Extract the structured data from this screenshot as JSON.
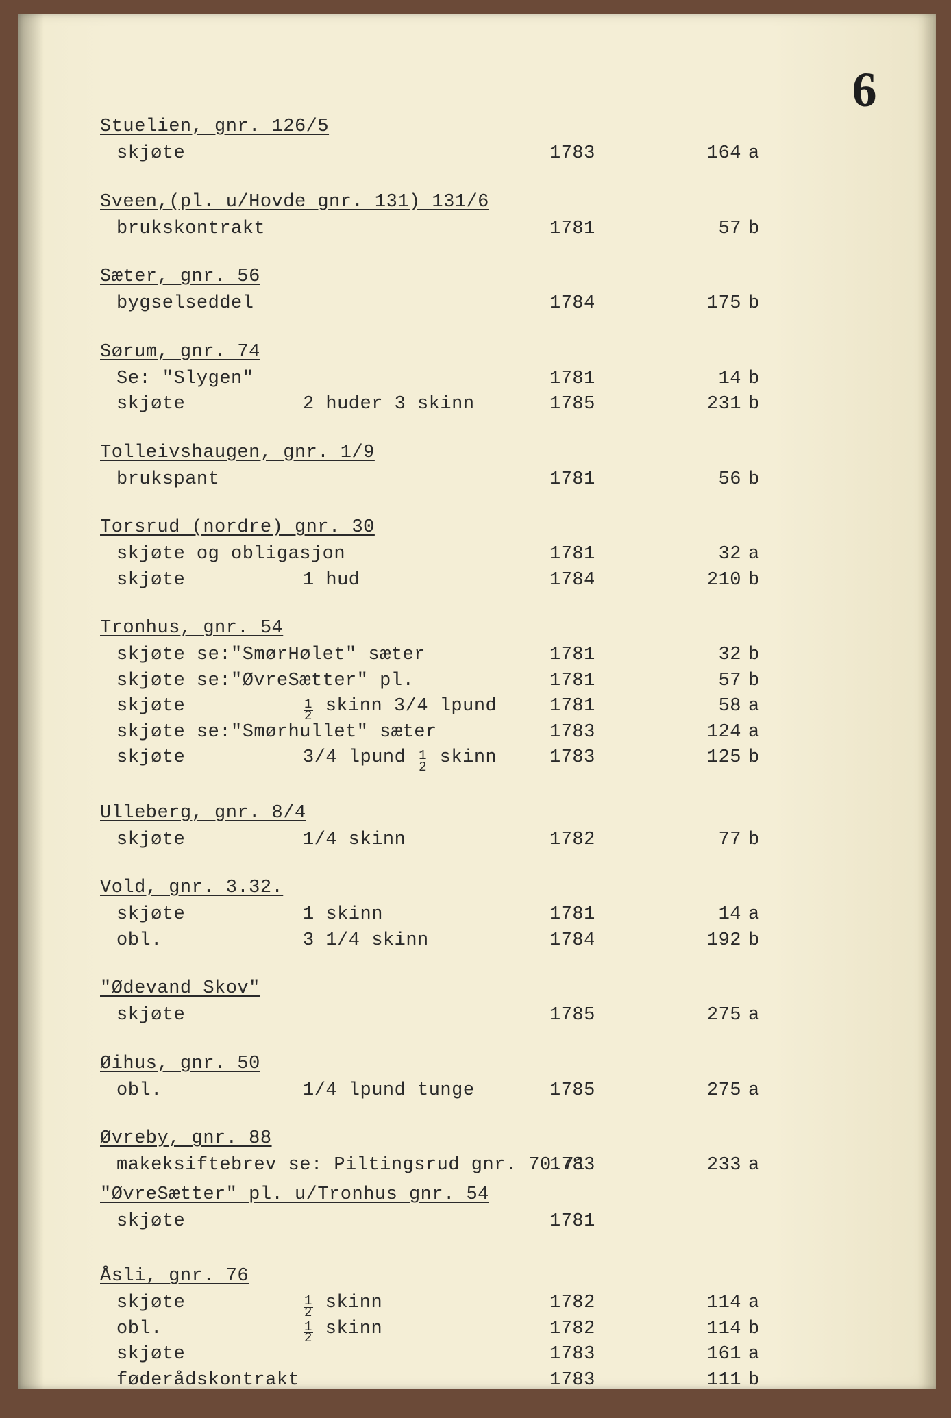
{
  "page_number": "6",
  "sections": [
    {
      "heading": "Stuelien, gnr. 126/5",
      "entries": [
        {
          "desc": "skjøte",
          "detail": "",
          "year": "1783",
          "folio": "164",
          "side": "a"
        }
      ]
    },
    {
      "heading": "Sveen,(pl. u/Hovde gnr. 131) 131/6",
      "entries": [
        {
          "desc": "brukskontrakt",
          "detail": "",
          "year": "1781",
          "folio": "57",
          "side": "b"
        }
      ]
    },
    {
      "heading": "Sæter, gnr. 56",
      "entries": [
        {
          "desc": "bygselseddel",
          "detail": "",
          "year": "1784",
          "folio": "175",
          "side": "b"
        }
      ]
    },
    {
      "heading": "Sørum, gnr. 74",
      "entries": [
        {
          "desc": "Se: \"Slygen\"",
          "detail": "",
          "year": "1781",
          "folio": "14",
          "side": "b"
        },
        {
          "desc": "skjøte",
          "detail": "2 huder 3 skinn",
          "year": "1785",
          "folio": "231",
          "side": "b"
        }
      ]
    },
    {
      "heading": "Tolleivshaugen, gnr. 1/9",
      "entries": [
        {
          "desc": "brukspant",
          "detail": "",
          "year": "1781",
          "folio": "56",
          "side": "b"
        }
      ]
    },
    {
      "heading": "Torsrud (nordre) gnr. 30",
      "entries": [
        {
          "desc": "skjøte og obligasjon",
          "detail": "",
          "year": "1781",
          "folio": "32",
          "side": "a"
        },
        {
          "desc": "skjøte",
          "detail": "1 hud",
          "year": "1784",
          "folio": "210",
          "side": "b"
        }
      ]
    },
    {
      "heading": "Tronhus, gnr. 54",
      "entries": [
        {
          "desc": "skjøte se:\"SmørHølet\" sæter",
          "detail": "",
          "year": "1781",
          "folio": "32",
          "side": "b",
          "wide": true
        },
        {
          "desc": "skjøte se:\"ØvreSætter\" pl.",
          "detail": "",
          "year": "1781",
          "folio": "57",
          "side": "b",
          "wide": true
        },
        {
          "desc": "skjøte",
          "detail_half_prefix": true,
          "detail_after": " skinn 3/4 lpund",
          "year": "1781",
          "folio": "58",
          "side": "a"
        },
        {
          "desc": "skjøte se:\"Smørhullet\" sæter",
          "detail": "",
          "year": "1783",
          "folio": "124",
          "side": "a",
          "wide": true
        },
        {
          "desc": "skjøte",
          "detail_before": "3/4 lpund ",
          "detail_half_suffix": true,
          "detail_after_suffix": " skinn",
          "year": "1783",
          "folio": "125",
          "side": "b"
        }
      ]
    },
    {
      "heading": "Ulleberg, gnr. 8/4",
      "entries": [
        {
          "desc": "skjøte",
          "detail": "1/4 skinn",
          "year": "1782",
          "folio": "77",
          "side": "b"
        }
      ],
      "gap_before": true
    },
    {
      "heading": "Vold, gnr. 3.32.",
      "entries": [
        {
          "desc": "skjøte",
          "detail": "1 skinn",
          "year": "1781",
          "folio": "14",
          "side": "a"
        },
        {
          "desc": "obl.",
          "detail": "3 1/4 skinn",
          "year": "1784",
          "folio": "192",
          "side": "b"
        }
      ]
    },
    {
      "heading": "\"Ødevand Skov\"",
      "entries": [
        {
          "desc": "skjøte",
          "detail": "",
          "year": "1785",
          "folio": "275",
          "side": "a"
        }
      ]
    },
    {
      "heading": "Øihus, gnr. 50",
      "entries": [
        {
          "desc": "obl.",
          "detail": "1/4 lpund tunge",
          "year": "1785",
          "folio": "275",
          "side": "a"
        }
      ]
    },
    {
      "heading": "Øvreby, gnr. 88",
      "entries": [
        {
          "desc": "makeksiftebrev se: Piltingsrud gnr. 70.71",
          "detail": "",
          "year": "1783",
          "folio": "233",
          "side": "a",
          "wide": true
        }
      ]
    },
    {
      "heading": "\"ØvreSætter\" pl. u/Tronhus gnr. 54",
      "entries": [
        {
          "desc": "skjøte",
          "detail": "",
          "year": "1781",
          "folio": "",
          "side": ""
        }
      ],
      "no_gap_before": true
    },
    {
      "heading": "Åsli, gnr. 76",
      "entries": [
        {
          "desc": "skjøte",
          "detail_half_prefix": true,
          "detail_after": " skinn",
          "year": "1782",
          "folio": "114",
          "side": "a"
        },
        {
          "desc": "obl.",
          "detail_half_prefix": true,
          "detail_after": " skinn",
          "year": "1782",
          "folio": "114",
          "side": "b"
        },
        {
          "desc": "skjøte",
          "detail": "",
          "year": "1783",
          "folio": "161",
          "side": "a"
        },
        {
          "desc": "føderådskontrakt",
          "detail": "",
          "year": "1783",
          "folio": "111",
          "side": "b"
        }
      ],
      "gap_before": true
    }
  ],
  "fraction": {
    "num": "1",
    "den": "2"
  }
}
